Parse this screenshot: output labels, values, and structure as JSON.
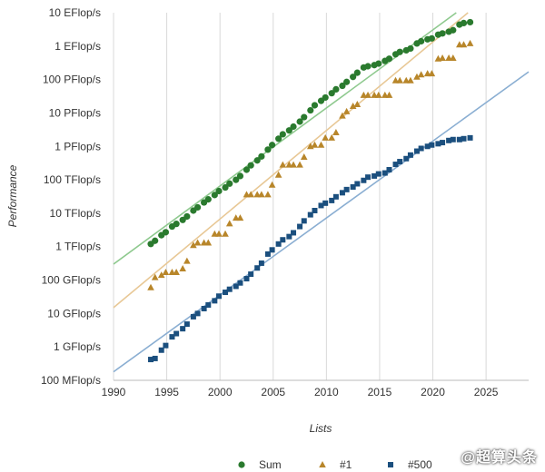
{
  "chart_data": {
    "type": "scatter",
    "xlabel": "Lists",
    "ylabel": "Performance",
    "xlim": [
      1990,
      2029
    ],
    "x_ticks": [
      1990,
      1995,
      2000,
      2005,
      2010,
      2015,
      2020,
      2025
    ],
    "y_scale": "log",
    "ylim_flops": [
      100000000.0,
      1e+19
    ],
    "y_ticks": [
      {
        "value": 1e+19,
        "label": "10 EFlop/s"
      },
      {
        "value": 1e+18,
        "label": "1 EFlop/s"
      },
      {
        "value": 1e+17,
        "label": "100 PFlop/s"
      },
      {
        "value": 1e+16,
        "label": "10 PFlop/s"
      },
      {
        "value": 1000000000000000.0,
        "label": "1 PFlop/s"
      },
      {
        "value": 100000000000000.0,
        "label": "100 TFlop/s"
      },
      {
        "value": 10000000000000.0,
        "label": "10 TFlop/s"
      },
      {
        "value": 1000000000000.0,
        "label": "1 TFlop/s"
      },
      {
        "value": 100000000000.0,
        "label": "100 GFlop/s"
      },
      {
        "value": 10000000000.0,
        "label": "10 GFlop/s"
      },
      {
        "value": 1000000000.0,
        "label": "1 GFlop/s"
      },
      {
        "value": 100000000.0,
        "label": "100 MFlop/s"
      }
    ],
    "grid": "vertical",
    "legend_position": "bottom",
    "series": [
      {
        "name": "Sum",
        "marker": "circle",
        "color": "#2a7a2e",
        "trend_color": "#8ec98e",
        "trend": [
          [
            1990,
            300000000000.0
          ],
          [
            2022.2,
            1e+19
          ]
        ],
        "points": [
          [
            1993.5,
            1200000000000.0
          ],
          [
            1993.9,
            1500000000000.0
          ],
          [
            1994.5,
            2200000000000.0
          ],
          [
            1994.9,
            2700000000000.0
          ],
          [
            1995.5,
            4000000000000.0
          ],
          [
            1995.9,
            4800000000000.0
          ],
          [
            1996.5,
            6300000000000.0
          ],
          [
            1996.9,
            8000000000000.0
          ],
          [
            1997.5,
            12000000000000.0
          ],
          [
            1997.9,
            15000000000000.0
          ],
          [
            1998.5,
            21000000000000.0
          ],
          [
            1998.9,
            26000000000000.0
          ],
          [
            1999.5,
            35000000000000.0
          ],
          [
            1999.9,
            46000000000000.0
          ],
          [
            2000.5,
            59000000000000.0
          ],
          [
            2000.9,
            77000000000000.0
          ],
          [
            2001.5,
            100000000000000.0
          ],
          [
            2001.9,
            130000000000000.0
          ],
          [
            2002.5,
            200000000000000.0
          ],
          [
            2002.9,
            270000000000000.0
          ],
          [
            2003.5,
            380000000000000.0
          ],
          [
            2003.9,
            500000000000000.0
          ],
          [
            2004.5,
            800000000000000.0
          ],
          [
            2004.9,
            1100000000000000.0
          ],
          [
            2005.5,
            1700000000000000.0
          ],
          [
            2005.9,
            2300000000000000.0
          ],
          [
            2006.5,
            3000000000000000.0
          ],
          [
            2006.9,
            3900000000000000.0
          ],
          [
            2007.5,
            5500000000000000.0
          ],
          [
            2007.9,
            7500000000000000.0
          ],
          [
            2008.5,
            1.2e+16
          ],
          [
            2008.9,
            1.7e+16
          ],
          [
            2009.5,
            2.3e+16
          ],
          [
            2009.9,
            2.9e+16
          ],
          [
            2010.5,
            3.9e+16
          ],
          [
            2010.9,
            5.1e+16
          ],
          [
            2011.5,
            6.5e+16
          ],
          [
            2011.9,
            8.5e+16
          ],
          [
            2012.5,
            1.2e+17
          ],
          [
            2012.9,
            1.6e+17
          ],
          [
            2013.5,
            2.3e+17
          ],
          [
            2013.9,
            2.5e+17
          ],
          [
            2014.5,
            2.7e+17
          ],
          [
            2014.9,
            3e+17
          ],
          [
            2015.5,
            3.6e+17
          ],
          [
            2015.9,
            4.2e+17
          ],
          [
            2016.5,
            5.7e+17
          ],
          [
            2016.9,
            6.7e+17
          ],
          [
            2017.5,
            7.5e+17
          ],
          [
            2017.9,
            8.5e+17
          ],
          [
            2018.5,
            1.2e+18
          ],
          [
            2018.9,
            1.4e+18
          ],
          [
            2019.5,
            1.6e+18
          ],
          [
            2019.9,
            1.7e+18
          ],
          [
            2020.5,
            2.2e+18
          ],
          [
            2020.9,
            2.4e+18
          ],
          [
            2021.5,
            2.7e+18
          ],
          [
            2021.9,
            3e+18
          ],
          [
            2022.5,
            4.4e+18
          ],
          [
            2022.9,
            4.9e+18
          ],
          [
            2023.5,
            5.2e+18
          ]
        ]
      },
      {
        "name": "#1",
        "marker": "triangle",
        "color": "#b8862a",
        "trend_color": "#e8c896",
        "trend": [
          [
            1990,
            15000000000.0
          ],
          [
            2023.3,
            1e+19
          ]
        ],
        "points": [
          [
            1993.5,
            60000000000.0
          ],
          [
            1993.9,
            120000000000.0
          ],
          [
            1994.5,
            140000000000.0
          ],
          [
            1994.9,
            170000000000.0
          ],
          [
            1995.5,
            170000000000.0
          ],
          [
            1995.9,
            170000000000.0
          ],
          [
            1996.5,
            220000000000.0
          ],
          [
            1996.9,
            370000000000.0
          ],
          [
            1997.5,
            1100000000000.0
          ],
          [
            1997.9,
            1300000000000.0
          ],
          [
            1998.5,
            1300000000000.0
          ],
          [
            1998.9,
            1300000000000.0
          ],
          [
            1999.5,
            2400000000000.0
          ],
          [
            1999.9,
            2400000000000.0
          ],
          [
            2000.5,
            2400000000000.0
          ],
          [
            2000.9,
            4900000000000.0
          ],
          [
            2001.5,
            7200000000000.0
          ],
          [
            2001.9,
            7200000000000.0
          ],
          [
            2002.5,
            36000000000000.0
          ],
          [
            2002.9,
            36000000000000.0
          ],
          [
            2003.5,
            36000000000000.0
          ],
          [
            2003.9,
            36000000000000.0
          ],
          [
            2004.5,
            36000000000000.0
          ],
          [
            2004.9,
            70000000000000.0
          ],
          [
            2005.5,
            140000000000000.0
          ],
          [
            2005.9,
            280000000000000.0
          ],
          [
            2006.5,
            280000000000000.0
          ],
          [
            2006.9,
            280000000000000.0
          ],
          [
            2007.5,
            280000000000000.0
          ],
          [
            2007.9,
            480000000000000.0
          ],
          [
            2008.5,
            1000000000000000.0
          ],
          [
            2008.9,
            1100000000000000.0
          ],
          [
            2009.5,
            1100000000000000.0
          ],
          [
            2009.9,
            1800000000000000.0
          ],
          [
            2010.5,
            1800000000000000.0
          ],
          [
            2010.9,
            2600000000000000.0
          ],
          [
            2011.5,
            8200000000000000.0
          ],
          [
            2011.9,
            1.1e+16
          ],
          [
            2012.5,
            1.6e+16
          ],
          [
            2012.9,
            1.8e+16
          ],
          [
            2013.5,
            3.4e+16
          ],
          [
            2013.9,
            3.4e+16
          ],
          [
            2014.5,
            3.4e+16
          ],
          [
            2014.9,
            3.4e+16
          ],
          [
            2015.5,
            3.4e+16
          ],
          [
            2015.9,
            3.4e+16
          ],
          [
            2016.5,
            9.3e+16
          ],
          [
            2016.9,
            9.3e+16
          ],
          [
            2017.5,
            9.3e+16
          ],
          [
            2017.9,
            9.3e+16
          ],
          [
            2018.5,
            1.2e+17
          ],
          [
            2018.9,
            1.4e+17
          ],
          [
            2019.5,
            1.5e+17
          ],
          [
            2019.9,
            1.5e+17
          ],
          [
            2020.5,
            4.2e+17
          ],
          [
            2020.9,
            4.4e+17
          ],
          [
            2021.5,
            4.4e+17
          ],
          [
            2021.9,
            4.4e+17
          ],
          [
            2022.5,
            1.1e+18
          ],
          [
            2022.9,
            1.1e+18
          ],
          [
            2023.5,
            1.2e+18
          ]
        ]
      },
      {
        "name": "#500",
        "marker": "square",
        "color": "#1b4f7e",
        "trend_color": "#8aaed2",
        "trend": [
          [
            1990,
            180000000.0
          ],
          [
            2029,
            1.7e+17
          ]
        ],
        "points": [
          [
            1993.5,
            420000000.0
          ],
          [
            1993.9,
            450000000.0
          ],
          [
            1994.5,
            800000000.0
          ],
          [
            1994.9,
            1100000000.0
          ],
          [
            1995.5,
            2000000000.0
          ],
          [
            1995.9,
            2500000000.0
          ],
          [
            1996.5,
            3500000000.0
          ],
          [
            1996.9,
            4800000000.0
          ],
          [
            1997.5,
            8000000000.0
          ],
          [
            1997.9,
            10000000000.0
          ],
          [
            1998.5,
            14000000000.0
          ],
          [
            1998.9,
            18000000000.0
          ],
          [
            1999.5,
            24000000000.0
          ],
          [
            1999.9,
            33000000000.0
          ],
          [
            2000.5,
            43000000000.0
          ],
          [
            2000.9,
            53000000000.0
          ],
          [
            2001.5,
            65000000000.0
          ],
          [
            2001.9,
            82000000000.0
          ],
          [
            2002.5,
            110000000000.0
          ],
          [
            2002.9,
            150000000000.0
          ],
          [
            2003.5,
            230000000000.0
          ],
          [
            2003.9,
            320000000000.0
          ],
          [
            2004.5,
            600000000000.0
          ],
          [
            2004.9,
            800000000000.0
          ],
          [
            2005.5,
            1200000000000.0
          ],
          [
            2005.9,
            1600000000000.0
          ],
          [
            2006.5,
            2000000000000.0
          ],
          [
            2006.9,
            2600000000000.0
          ],
          [
            2007.5,
            4000000000000.0
          ],
          [
            2007.9,
            5900000000000.0
          ],
          [
            2008.5,
            9000000000000.0
          ],
          [
            2008.9,
            12000000000000.0
          ],
          [
            2009.5,
            17000000000000.0
          ],
          [
            2009.9,
            20000000000000.0
          ],
          [
            2010.5,
            24000000000000.0
          ],
          [
            2010.9,
            31000000000000.0
          ],
          [
            2011.5,
            41000000000000.0
          ],
          [
            2011.9,
            51000000000000.0
          ],
          [
            2012.5,
            61000000000000.0
          ],
          [
            2012.9,
            76000000000000.0
          ],
          [
            2013.5,
            96000000000000.0
          ],
          [
            2013.9,
            120000000000000.0
          ],
          [
            2014.5,
            130000000000000.0
          ],
          [
            2014.9,
            150000000000000.0
          ],
          [
            2015.5,
            160000000000000.0
          ],
          [
            2015.9,
            200000000000000.0
          ],
          [
            2016.5,
            290000000000000.0
          ],
          [
            2016.9,
            350000000000000.0
          ],
          [
            2017.5,
            430000000000000.0
          ],
          [
            2017.9,
            550000000000000.0
          ],
          [
            2018.5,
            720000000000000.0
          ],
          [
            2018.9,
            870000000000000.0
          ],
          [
            2019.5,
            1000000000000000.0
          ],
          [
            2019.9,
            1100000000000000.0
          ],
          [
            2020.5,
            1200000000000000.0
          ],
          [
            2020.9,
            1300000000000000.0
          ],
          [
            2021.5,
            1500000000000000.0
          ],
          [
            2021.9,
            1600000000000000.0
          ],
          [
            2022.5,
            1600000000000000.0
          ],
          [
            2022.9,
            1700000000000000.0
          ],
          [
            2023.5,
            1800000000000000.0
          ]
        ]
      }
    ]
  },
  "watermark": "@超算头条"
}
